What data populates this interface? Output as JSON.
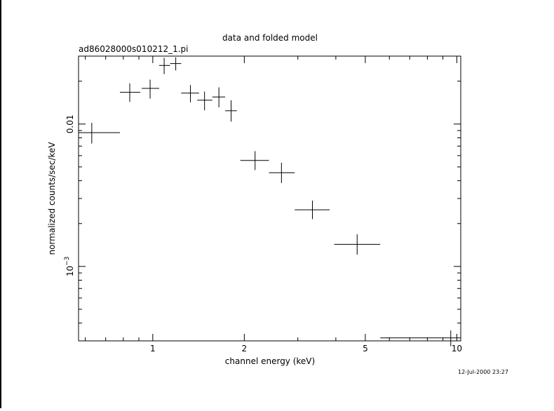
{
  "chart_data": {
    "type": "scatter",
    "title": "data and folded model",
    "subtitle": "ad86028000s010212_1.pi",
    "xlabel": "channel energy (keV)",
    "ylabel": "normalized counts/sec/keV",
    "xscale": "log",
    "yscale": "log",
    "xlim": [
      0.57,
      10.3
    ],
    "ylim": [
      0.0003,
      0.03
    ],
    "x_ticks": [
      {
        "value": 1,
        "label": "1"
      },
      {
        "value": 2,
        "label": "2"
      },
      {
        "value": 5,
        "label": "5"
      },
      {
        "value": 10,
        "label": "10"
      }
    ],
    "y_ticks": [
      {
        "value": 0.01,
        "label": "0.01"
      },
      {
        "value": 0.001,
        "label": "10",
        "exponent": "−3"
      }
    ],
    "grid": false,
    "legend": "none",
    "timestamp": "12-Jul-2000 23:27",
    "series": [
      {
        "points": [
          {
            "x": 0.63,
            "x_lo": 0.57,
            "x_hi": 0.78,
            "y": 0.0087,
            "y_lo": 0.0073,
            "y_hi": 0.0102
          },
          {
            "x": 0.84,
            "x_lo": 0.78,
            "x_hi": 0.91,
            "y": 0.0167,
            "y_lo": 0.0143,
            "y_hi": 0.0193
          },
          {
            "x": 0.98,
            "x_lo": 0.92,
            "x_hi": 1.05,
            "y": 0.0178,
            "y_lo": 0.0151,
            "y_hi": 0.0205
          },
          {
            "x": 1.09,
            "x_lo": 1.05,
            "x_hi": 1.14,
            "y": 0.0258,
            "y_lo": 0.0224,
            "y_hi": 0.0292
          },
          {
            "x": 1.19,
            "x_lo": 1.14,
            "x_hi": 1.24,
            "y": 0.0266,
            "y_lo": 0.0238,
            "y_hi": 0.0294
          },
          {
            "x": 1.33,
            "x_lo": 1.24,
            "x_hi": 1.42,
            "y": 0.0165,
            "y_lo": 0.0142,
            "y_hi": 0.0188
          },
          {
            "x": 1.48,
            "x_lo": 1.4,
            "x_hi": 1.57,
            "y": 0.0147,
            "y_lo": 0.0125,
            "y_hi": 0.0169
          },
          {
            "x": 1.65,
            "x_lo": 1.57,
            "x_hi": 1.73,
            "y": 0.0155,
            "y_lo": 0.0131,
            "y_hi": 0.0181
          },
          {
            "x": 1.81,
            "x_lo": 1.73,
            "x_hi": 1.89,
            "y": 0.0124,
            "y_lo": 0.0104,
            "y_hi": 0.0147
          },
          {
            "x": 2.17,
            "x_lo": 1.94,
            "x_hi": 2.41,
            "y": 0.00555,
            "y_lo": 0.00475,
            "y_hi": 0.00645
          },
          {
            "x": 2.65,
            "x_lo": 2.41,
            "x_hi": 2.93,
            "y": 0.00455,
            "y_lo": 0.00385,
            "y_hi": 0.00535
          },
          {
            "x": 3.35,
            "x_lo": 2.93,
            "x_hi": 3.82,
            "y": 0.0025,
            "y_lo": 0.00215,
            "y_hi": 0.0029
          },
          {
            "x": 4.7,
            "x_lo": 3.95,
            "x_hi": 5.6,
            "y": 0.00143,
            "y_lo": 0.00121,
            "y_hi": 0.00168
          },
          {
            "x": 9.55,
            "x_lo": 5.6,
            "x_hi": 10.3,
            "y": 0.000315,
            "y_lo": 0.000275,
            "y_hi": 0.000355
          }
        ]
      }
    ]
  }
}
